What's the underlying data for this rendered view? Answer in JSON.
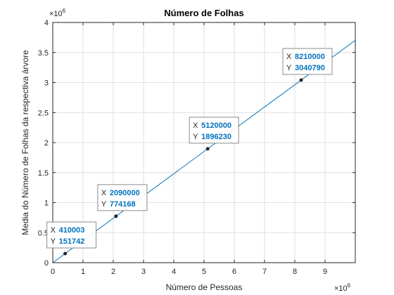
{
  "chart_data": {
    "type": "line",
    "title": "Número de Folhas",
    "xlabel": "Número de Pessoas",
    "ylabel": "Media do Número de Folhas da respectiva árvore",
    "xlim": [
      0,
      10000000
    ],
    "ylim": [
      0,
      4000000
    ],
    "x_ticks": [
      0,
      1000000,
      2000000,
      3000000,
      4000000,
      5000000,
      6000000,
      7000000,
      8000000,
      9000000
    ],
    "x_tick_labels": [
      "0",
      "1",
      "2",
      "3",
      "4",
      "5",
      "6",
      "7",
      "8",
      "9"
    ],
    "y_ticks": [
      0,
      500000,
      1000000,
      1500000,
      2000000,
      2500000,
      3000000,
      3500000,
      4000000
    ],
    "y_tick_labels": [
      "0",
      "0.5",
      "1",
      "1.5",
      "2",
      "2.5",
      "3",
      "3.5",
      "4"
    ],
    "x_exponent": {
      "base": "×10",
      "power": "6"
    },
    "y_exponent": {
      "base": "×10",
      "power": "6"
    },
    "grid": true,
    "series": [
      {
        "color": "#0072bd",
        "x": [
          0,
          10000000
        ],
        "y": [
          0,
          3703400
        ]
      }
    ],
    "datatips": [
      {
        "x_label": "X",
        "x_value": "410003",
        "y_label": "Y",
        "y_value": "151742",
        "x": 410003,
        "y": 151742
      },
      {
        "x_label": "X",
        "x_value": "2090000",
        "y_label": "Y",
        "y_value": "774168",
        "x": 2090000,
        "y": 774168
      },
      {
        "x_label": "X",
        "x_value": "5120000",
        "y_label": "Y",
        "y_value": "1896230",
        "x": 5120000,
        "y": 1896230
      },
      {
        "x_label": "X",
        "x_value": "8210000",
        "y_label": "Y",
        "y_value": "3040790",
        "x": 8210000,
        "y": 3040790
      }
    ],
    "colors": {
      "line": "#0072bd",
      "datatip_value": "#0072bd",
      "grid": "#dfdfdf",
      "axis": "#262626"
    }
  }
}
